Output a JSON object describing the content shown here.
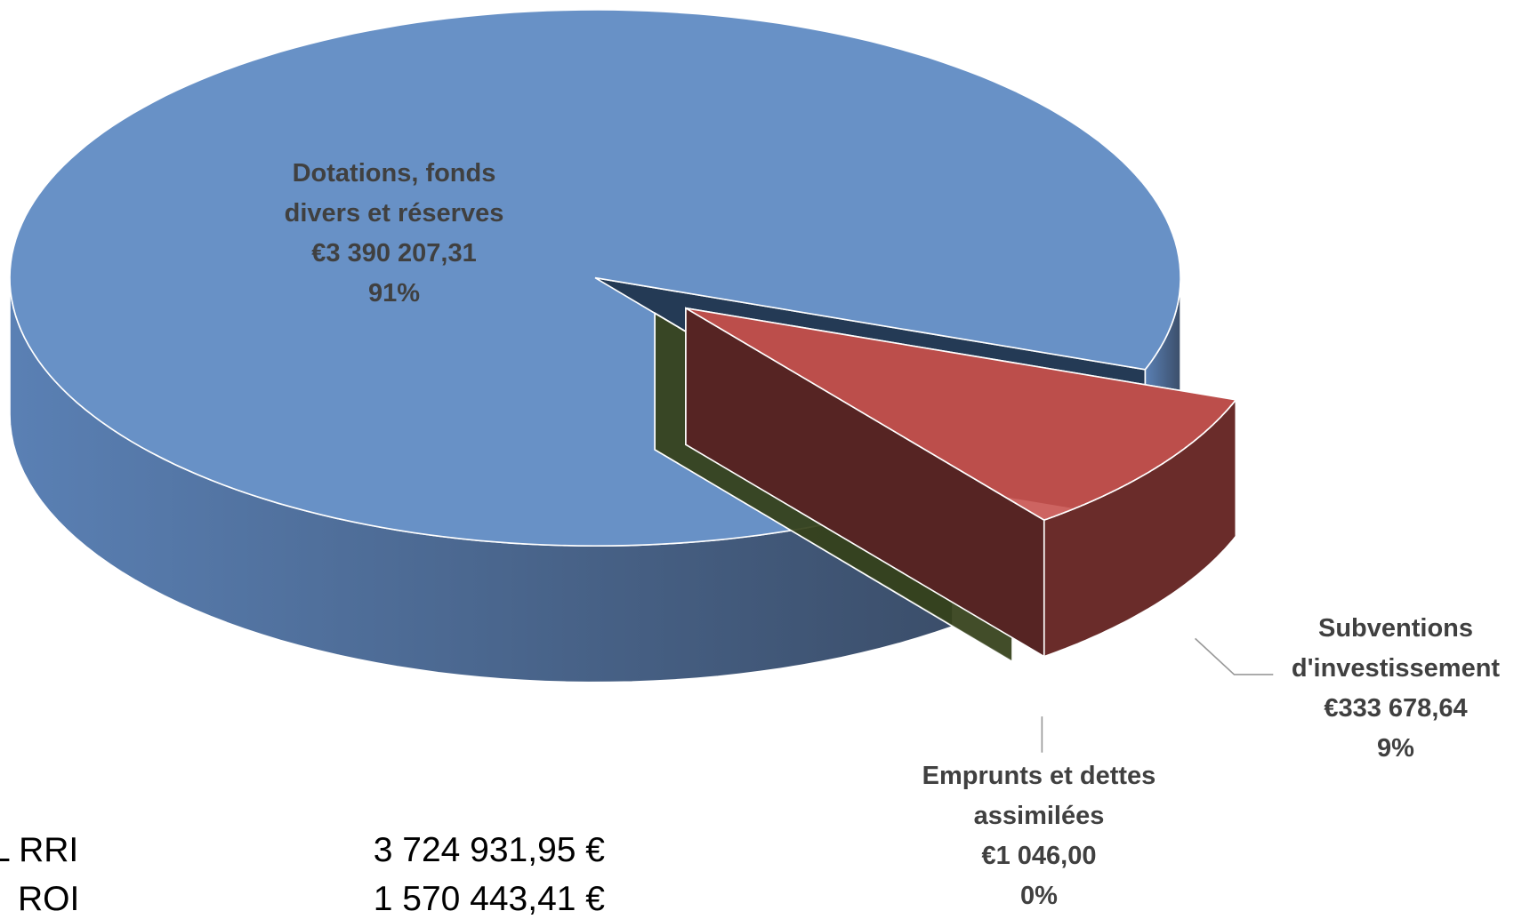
{
  "chart_data": {
    "type": "pie",
    "categories": [
      "Subventions d'investissement",
      "Emprunts et dettes assimilées",
      "Dotations, fonds divers et réserves"
    ],
    "values": [
      333678.64,
      1046.0,
      3390207.31
    ],
    "value_labels": [
      "€333 678,64",
      "€1 046,00",
      "€3 390 207,31"
    ],
    "percent_labels": [
      "9%",
      "0%",
      "91%"
    ],
    "colors": [
      "#c0504d",
      "#76923c",
      "#4f81bd"
    ]
  },
  "table": {
    "rows": [
      [
        "L RRI",
        "3 724 931,95 €"
      ],
      [
        "ROI",
        "1 570 443,41 €"
      ]
    ]
  }
}
